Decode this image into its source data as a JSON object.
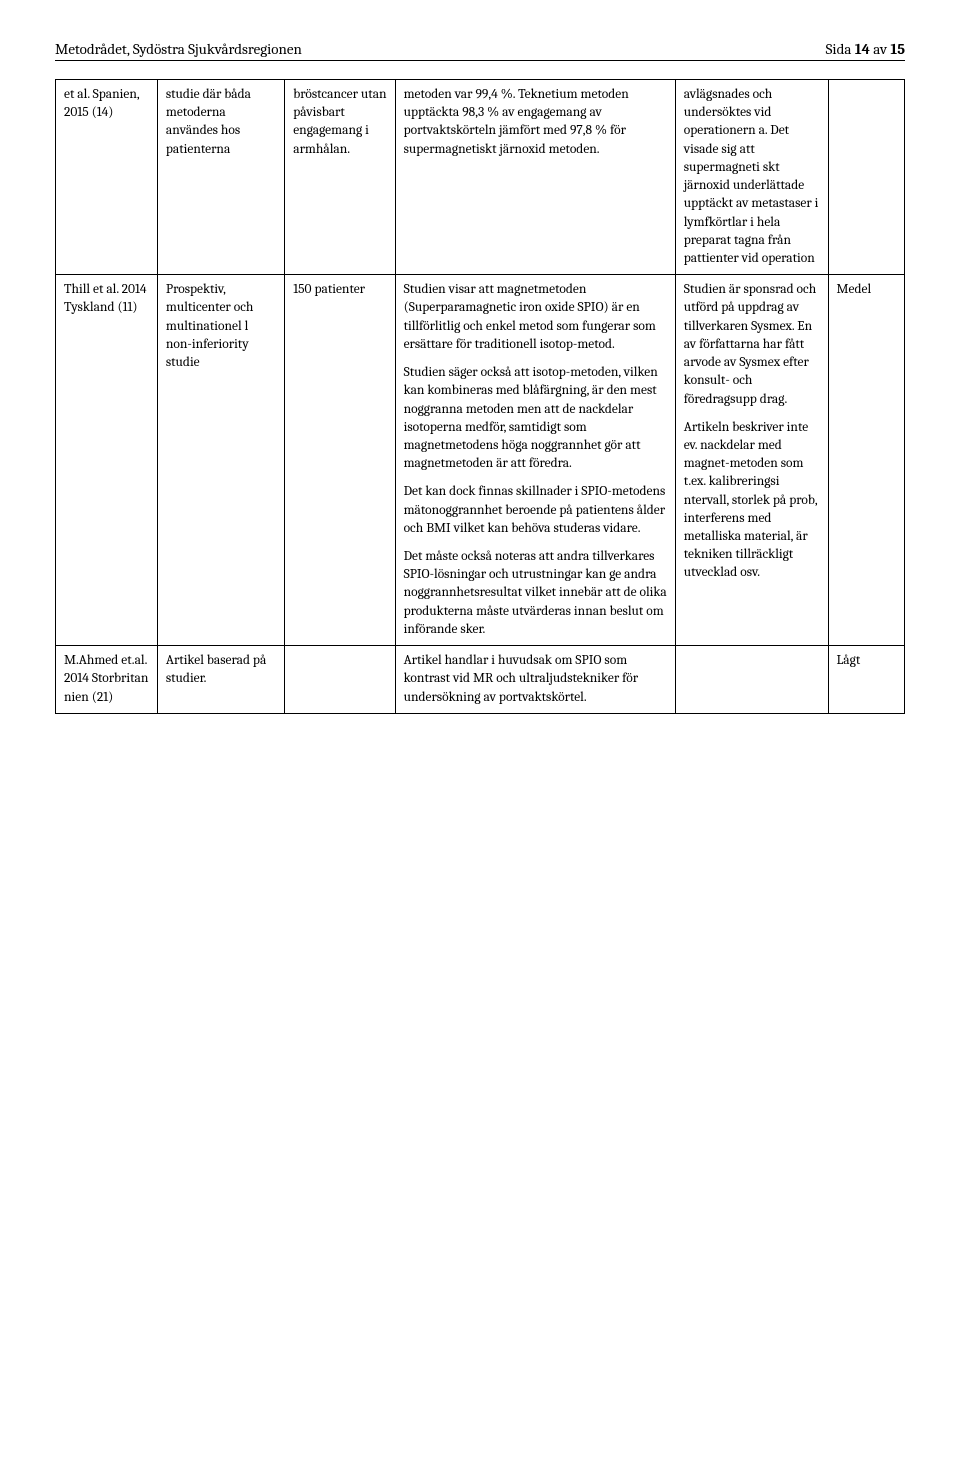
{
  "header": {
    "left": "Metodrådet, Sydöstra Sjukvårdsregionen",
    "right_prefix": "Sida ",
    "right_page": "14",
    "right_mid": " av ",
    "right_total": "15"
  },
  "rows": [
    {
      "c1": "et al. Spanien, 2015 (14)",
      "c2": "studie där båda metoderna användes hos patienterna",
      "c3": "bröstcancer utan påvisbart engagemang i armhålan.",
      "c4": "metoden var 99,4 %. Teknetium metoden upptäckta 98,3 % av engagemang av portvaktskörteln jämfört med 97,8 %  för supermagnetiskt järnoxid metoden.",
      "c5": "avlägsnades och undersöktes vid operationern a. Det visade sig att supermagneti skt järnoxid underlättade upptäckt av metastaser i lymfkörtlar i hela preparat tagna från pattienter vid operation",
      "c6": ""
    },
    {
      "c1": "Thill et al. 2014 Tyskland (11)",
      "c2": "Prospektiv, multicenter och multinationel l non-inferiority studie",
      "c3": "150 patienter",
      "c4_p1": "Studien visar att magnetmetoden (Superparamagnetic iron oxide SPIO) är en tillförlitlig och enkel metod som fungerar som ersättare för traditionell isotop-metod.",
      "c4_p2": "Studien säger också att isotop-metoden, vilken kan kombineras med blåfärgning, är den mest noggranna metoden men att de nackdelar isotoperna medför, samtidigt som magnetmetodens höga noggrannhet gör att magnetmetoden är att föredra.",
      "c4_p3": "Det kan dock finnas skillnader i SPIO-metodens mätonoggrannhet beroende på patientens ålder och BMI vilket kan behöva studeras vidare.",
      "c4_p4": "Det måste också noteras att andra tillverkares SPIO-lösningar och utrustningar kan ge andra noggrannhetsresultat vilket innebär att de olika produkterna måste utvärderas innan beslut om införande sker.",
      "c5_p1": "Studien är sponsrad och utförd på uppdrag av tillverkaren Sysmex. En av författarna har fått arvode av Sysmex efter konsult- och föredragsupp drag.",
      "c5_p2": "Artikeln beskriver inte ev. nackdelar med magnet-metoden som t.ex. kalibreringsi ntervall, storlek på prob, interferens med metalliska material, är tekniken tillräckligt utvecklad osv.",
      "c6": "Medel"
    },
    {
      "c1": "M.Ahmed et.al. 2014 Storbritan nien (21)",
      "c2": "Artikel baserad på studier.",
      "c3": "",
      "c4": "Artikel handlar i huvudsak om SPIO som kontrast vid MR och ultraljudstekniker för undersökning av portvaktskörtel.",
      "c5": "",
      "c6": "Lågt"
    }
  ]
}
